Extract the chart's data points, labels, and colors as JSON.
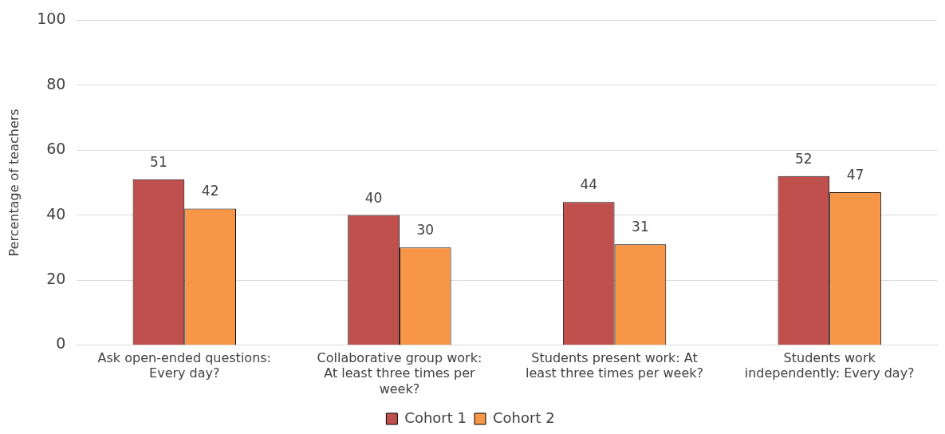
{
  "chart_data": {
    "type": "bar",
    "ylabel": "Percentage of teachers",
    "categories": [
      "Ask open-ended questions: Every day?",
      "Collaborative group work: At least three times per week?",
      "Students present work: At least three times per week?",
      "Students work independently: Every day?"
    ],
    "series": [
      {
        "name": "Cohort 1",
        "color": "#c0504d",
        "values": [
          51,
          40,
          44,
          52
        ]
      },
      {
        "name": "Cohort 2",
        "color": "#f79646",
        "values": [
          42,
          30,
          31,
          47
        ]
      }
    ],
    "ylim": [
      0,
      100
    ],
    "yticks": [
      0,
      20,
      40,
      60,
      80,
      100
    ],
    "grid": "y",
    "legend": "bottom",
    "data_labels": true
  }
}
